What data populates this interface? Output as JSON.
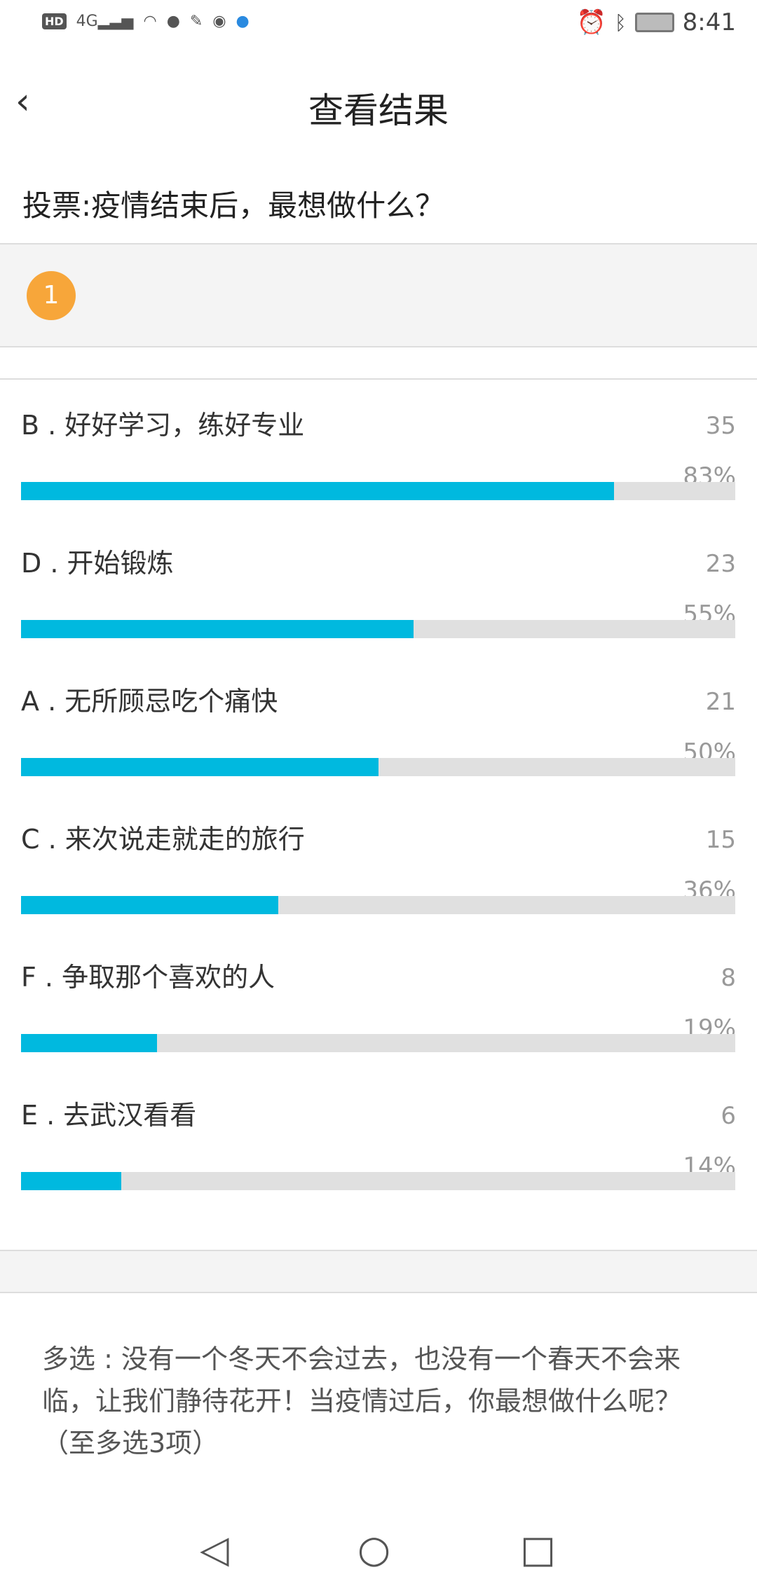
{
  "status_bar": {
    "left_icons": [
      "hd-icon",
      "4g-signal-icon",
      "wifi-icon",
      "qq-icon",
      "xuexi-icon",
      "app-icon",
      "browser-icon",
      "app-text-icon"
    ],
    "network": "4G",
    "time": "8:41"
  },
  "header": {
    "title": "查看结果"
  },
  "vote_title": "投票:疫情结束后，最想做什么？",
  "badge": "1",
  "colors": {
    "bar_fill": "#00b9df",
    "bar_track": "#e0e0e0",
    "badge": "#f7a63a"
  },
  "options": [
    {
      "label": "B . 好好学习，练好专业",
      "count": "35",
      "percent": "83%",
      "fraction": 0.83
    },
    {
      "label": "D . 开始锻炼",
      "count": "23",
      "percent": "55%",
      "fraction": 0.55
    },
    {
      "label": "A . 无所顾忌吃个痛快",
      "count": "21",
      "percent": "50%",
      "fraction": 0.5
    },
    {
      "label": "C . 来次说走就走的旅行",
      "count": "15",
      "percent": "36%",
      "fraction": 0.36
    },
    {
      "label": "F . 争取那个喜欢的人",
      "count": "8",
      "percent": "19%",
      "fraction": 0.19
    },
    {
      "label": "E . 去武汉看看",
      "count": "6",
      "percent": "14%",
      "fraction": 0.14
    }
  ],
  "description": "多选 : 没有一个冬天不会过去，也没有一个春天不会来临，让我们静待花开！当疫情过后，你最想做什么呢？（至多选3项）"
}
